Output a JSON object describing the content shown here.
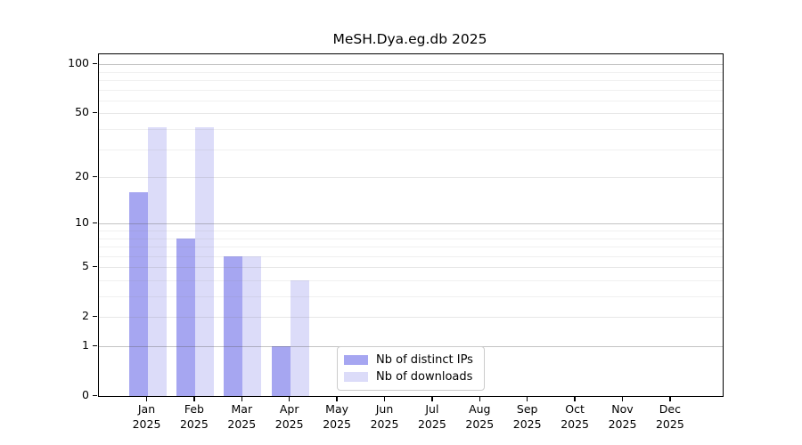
{
  "chart_data": {
    "type": "bar",
    "title": "MeSH.Dya.eg.db 2025",
    "months": [
      "Jan",
      "Feb",
      "Mar",
      "Apr",
      "May",
      "Jun",
      "Jul",
      "Aug",
      "Sep",
      "Oct",
      "Nov",
      "Dec"
    ],
    "year_label": "2025",
    "series": [
      {
        "name": "Nb of distinct IPs",
        "color": "#a6a6f1",
        "values": [
          16,
          8,
          6,
          1,
          0,
          0,
          0,
          0,
          0,
          0,
          0,
          0
        ]
      },
      {
        "name": "Nb of downloads",
        "color": "#dcdcf9",
        "values": [
          41,
          41,
          6,
          4,
          0,
          0,
          0,
          0,
          0,
          0,
          0,
          0
        ]
      }
    ],
    "y_scale": "log1p",
    "ylim": [
      0,
      115
    ],
    "y_ticks": [
      100,
      50,
      20,
      10,
      5,
      2,
      1,
      0
    ],
    "y_major_gridlines": [
      100,
      10,
      1
    ],
    "y_minor_gridlines": [
      3,
      4,
      6,
      7,
      8,
      9,
      30,
      40,
      60,
      70,
      80,
      90
    ],
    "grid": "on",
    "legend_position": "lower-center"
  }
}
